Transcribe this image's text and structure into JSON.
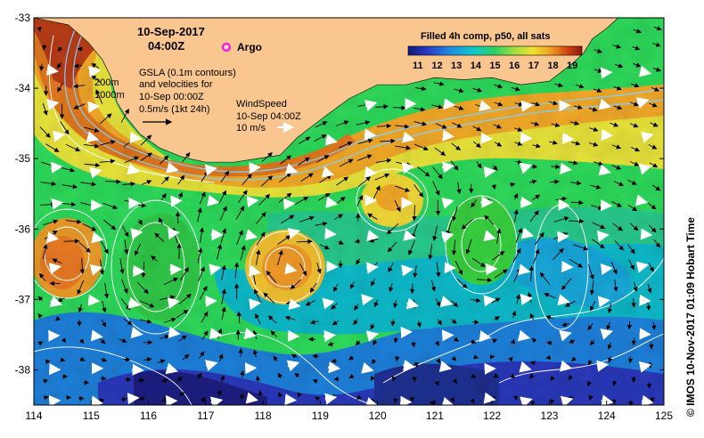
{
  "map": {
    "title_date": "10-Sep-2017",
    "title_time": "04:00Z",
    "argo_label": "Argo",
    "legend_title": "Filled 4h comp, p50, all sats",
    "legend_ticks": [
      "11",
      "12",
      "13",
      "14",
      "15",
      "16",
      "17",
      "18",
      "19"
    ],
    "legend_min": 10.5,
    "legend_max": 19.5,
    "bathy_labels": [
      "200m",
      "1000m"
    ],
    "gsla_line1": "GSLA (0.1m contours)",
    "gsla_line2": "and velocities for",
    "gsla_line3": "10-Sep 00:00Z",
    "gsla_line4": "0.5m/s (1kt 24h)",
    "wind_line1": "WindSpeed",
    "wind_line2": "10-Sep 04:00Z",
    "wind_line3": "10 m/s",
    "credit": "©  IMOS 10-Nov-2017 01:09 Hobart Time",
    "x_ticks": [
      "114",
      "115",
      "116",
      "117",
      "118",
      "119",
      "120",
      "121",
      "122",
      "123",
      "124",
      "125"
    ],
    "y_ticks": [
      "-33",
      "-34",
      "-35",
      "-36",
      "-37",
      "-38"
    ],
    "lon_range": [
      114,
      125
    ],
    "lat_range": [
      -38.5,
      -33
    ],
    "colors": {
      "land": "#f9c690",
      "argo": "#ff00ff",
      "bathy_line": "#7fd0ff",
      "contour": "#ffffff",
      "wind_arrow": "#ffffff",
      "current_arrow": "#000000"
    },
    "coastline_lat_by_lon": [
      [
        114,
        -33
      ],
      [
        114.6,
        -33.1
      ],
      [
        114.95,
        -33.35
      ],
      [
        115.2,
        -33.6
      ],
      [
        115.35,
        -33.85
      ],
      [
        115.45,
        -34.2
      ],
      [
        115.6,
        -34.4
      ],
      [
        115.85,
        -34.65
      ],
      [
        116.2,
        -34.85
      ],
      [
        116.6,
        -34.98
      ],
      [
        117.0,
        -35.05
      ],
      [
        117.5,
        -35.05
      ],
      [
        117.9,
        -35.0
      ],
      [
        118.3,
        -34.95
      ],
      [
        118.6,
        -34.7
      ],
      [
        119.0,
        -34.45
      ],
      [
        119.5,
        -34.15
      ],
      [
        120.0,
        -33.95
      ],
      [
        120.5,
        -33.95
      ],
      [
        121.0,
        -33.85
      ],
      [
        121.5,
        -33.88
      ],
      [
        122.0,
        -33.85
      ],
      [
        122.5,
        -33.95
      ],
      [
        123.0,
        -33.9
      ],
      [
        123.4,
        -33.65
      ],
      [
        123.6,
        -33.5
      ],
      [
        123.75,
        -33.3
      ],
      [
        124.0,
        -33.15
      ],
      [
        124.2,
        -33.0
      ]
    ]
  }
}
